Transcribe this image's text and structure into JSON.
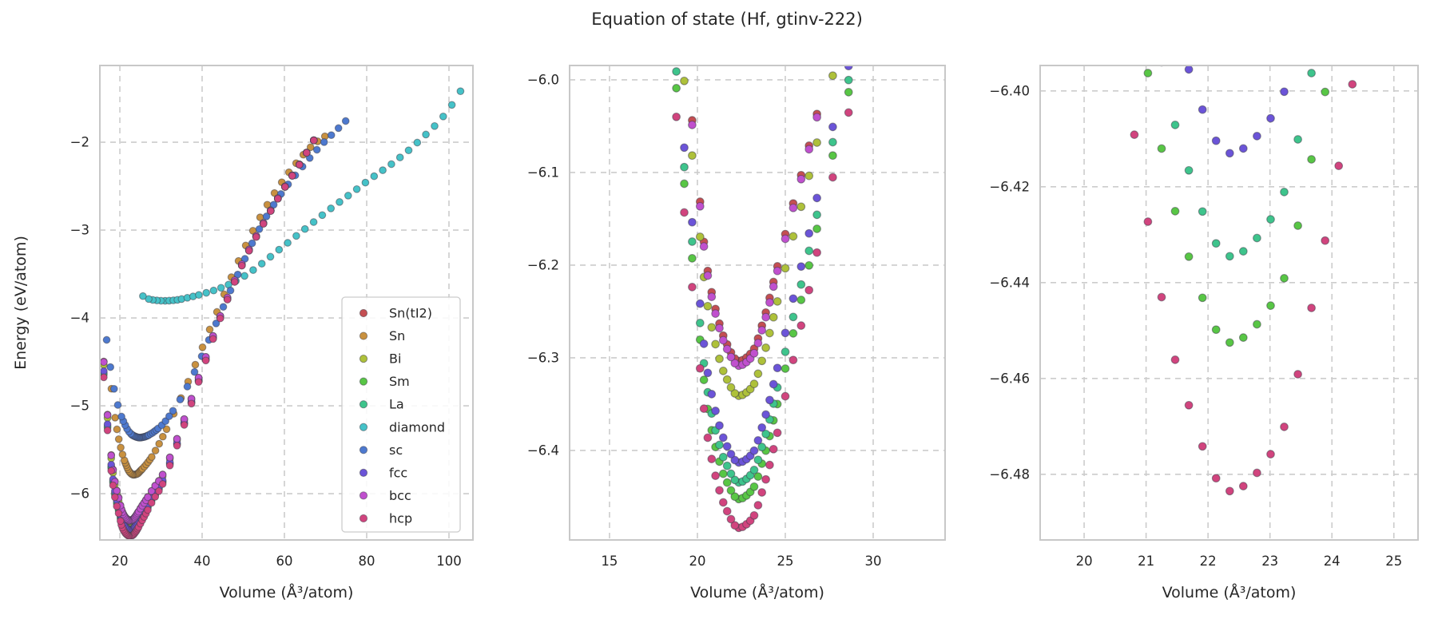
{
  "chart_data": {
    "type": "scatter",
    "title": "Equation of state (Hf, gtinv-222)",
    "xlabel": "Volume (Å³/atom)",
    "ylabel": "Energy (eV/atom)",
    "grid": "dashed-both-axes",
    "legend_position": "lower-right-of-first-subplot",
    "legend_labels": [
      "Sn(tI2)",
      "Sn",
      "Bi",
      "Sm",
      "La",
      "diamond",
      "sc",
      "fcc",
      "bcc",
      "hcp"
    ],
    "subplots": [
      {
        "name": "overview",
        "xlabel": "Volume (Å³/atom)",
        "ylabel": "Energy (eV/atom)",
        "xlim": [
          15.14,
          105.83
        ],
        "ylim": [
          -6.527,
          -1.127
        ],
        "xticks": [
          20,
          40,
          60,
          80,
          100
        ],
        "xticklabels": [
          "20",
          "40",
          "60",
          "80",
          "100"
        ],
        "yticks": [
          -2,
          -3,
          -4,
          -5,
          -6
        ],
        "yticklabels": [
          "−2",
          "−3",
          "−4",
          "−5",
          "−6"
        ],
        "legend": true
      },
      {
        "name": "zoom-mid",
        "xlabel": "Volume (Å³/atom)",
        "ylabel": "",
        "xlim": [
          12.73,
          34.09
        ],
        "ylim": [
          -6.4966,
          -5.9845
        ],
        "xticks": [
          15,
          20,
          25,
          30
        ],
        "xticklabels": [
          "15",
          "20",
          "25",
          "30"
        ],
        "yticks": [
          -6.0,
          -6.1,
          -6.2,
          -6.3,
          -6.4
        ],
        "yticklabels": [
          "−6.0",
          "−6.1",
          "−6.2",
          "−6.3",
          "−6.4"
        ],
        "legend": false
      },
      {
        "name": "zoom-fine",
        "xlabel": "Volume (Å³/atom)",
        "ylabel": "",
        "xlim": [
          19.29,
          25.39
        ],
        "ylim": [
          -6.4937,
          -6.3947
        ],
        "xticks": [
          20,
          21,
          22,
          23,
          24,
          25
        ],
        "xticklabels": [
          "20",
          "21",
          "22",
          "23",
          "24",
          "25"
        ],
        "yticks": [
          -6.4,
          -6.42,
          -6.44,
          -6.46,
          -6.48
        ],
        "yticklabels": [
          "−6.40",
          "−6.42",
          "−6.44",
          "−6.46",
          "−6.48"
        ],
        "legend": false
      }
    ],
    "series": [
      {
        "name": "Sn(tI2)",
        "color": "#c44e52",
        "V0": 22.35,
        "step_zones": [
          [
            2,
            0.22
          ],
          [
            4.2,
            0.45
          ],
          [
            8,
            0.9
          ],
          [
            999,
            1.75
          ]
        ],
        "V": [
          15.4,
          16.2,
          17,
          18,
          19,
          19.9,
          20.5,
          21,
          21.6,
          22.35,
          23.1,
          23.8,
          24.5,
          25.3,
          26.2,
          28,
          30,
          33,
          36,
          40,
          45,
          50,
          55,
          60,
          64,
          68.5
        ],
        "E": [
          -3.94,
          -4.57,
          -5.1,
          -5.6,
          -5.91,
          -6.08,
          -6.195,
          -6.245,
          -6.282,
          -6.3035,
          -6.294,
          -6.257,
          -6.205,
          -6.144,
          -6.082,
          -5.946,
          -5.817,
          -5.484,
          -5.106,
          -4.565,
          -3.903,
          -3.353,
          -2.911,
          -2.515,
          -2.226,
          -1.87
        ]
      },
      {
        "name": "Sn",
        "color": "#c9913f",
        "V0": 23.3,
        "step_zones": [
          [
            2,
            0.22
          ],
          [
            4.2,
            0.45
          ],
          [
            8,
            0.9
          ],
          [
            999,
            1.75
          ]
        ],
        "V": [
          17.5,
          18.5,
          19.5,
          20.5,
          21.5,
          22.4,
          23.3,
          24.2,
          25,
          26,
          27.5,
          29,
          31,
          33.5,
          36,
          39,
          43,
          48,
          53,
          58,
          63,
          67,
          70.9
        ],
        "E": [
          -4.62,
          -5.02,
          -5.32,
          -5.53,
          -5.67,
          -5.755,
          -5.785,
          -5.775,
          -5.74,
          -5.69,
          -5.6,
          -5.48,
          -5.3,
          -5.05,
          -4.79,
          -4.46,
          -4.0,
          -3.44,
          -2.95,
          -2.55,
          -2.23,
          -2.03,
          -1.9
        ]
      },
      {
        "name": "Bi",
        "color": "#aec13a",
        "V0": 22.35,
        "step_zones": [
          [
            2,
            0.22
          ],
          [
            4.2,
            0.45
          ],
          [
            8,
            0.9
          ],
          [
            999,
            1.75
          ]
        ],
        "V": [
          15.4,
          16.2,
          17,
          18,
          19,
          19.9,
          20.5,
          21,
          21.6,
          22.35,
          23.1,
          23.8,
          24.5,
          25.3,
          26.2,
          28,
          30,
          33,
          36,
          40,
          45,
          50,
          55,
          60,
          64,
          68.5
        ],
        "E": [
          -3.978,
          -4.608,
          -5.138,
          -5.638,
          -5.948,
          -6.118,
          -6.233,
          -6.283,
          -6.32,
          -6.341,
          -6.332,
          -6.295,
          -6.243,
          -6.18,
          -6.115,
          -5.973,
          -5.84,
          -5.502,
          -5.119,
          -4.574,
          -3.909,
          -3.357,
          -2.913,
          -2.516,
          -2.227,
          -1.87
        ]
      },
      {
        "name": "Sm",
        "color": "#58c645",
        "V0": 22.35,
        "step_zones": [
          [
            2,
            0.22
          ],
          [
            4.2,
            0.45
          ],
          [
            8,
            0.9
          ],
          [
            999,
            1.75
          ]
        ],
        "V": [
          15.4,
          16.2,
          17,
          18,
          19,
          19.9,
          20.5,
          21,
          21.6,
          22.35,
          23.1,
          23.8,
          24.5,
          25.3,
          26.2,
          28,
          30,
          33,
          36,
          40,
          45,
          50,
          55,
          60,
          64,
          68.5
        ],
        "E": [
          -4.089,
          -4.719,
          -5.249,
          -5.749,
          -6.059,
          -6.229,
          -6.344,
          -6.394,
          -6.431,
          -6.4525,
          -6.443,
          -6.406,
          -6.354,
          -6.286,
          -6.213,
          -6.057,
          -5.91,
          -5.555,
          -5.159,
          -4.602,
          -3.925,
          -3.367,
          -2.918,
          -2.519,
          -2.229,
          -1.87
        ]
      },
      {
        "name": "La",
        "color": "#3ec48c",
        "V0": 22.35,
        "step_zones": [
          [
            2,
            0.22
          ],
          [
            4.2,
            0.45
          ],
          [
            8,
            0.9
          ],
          [
            999,
            1.75
          ]
        ],
        "V": [
          15.4,
          16.2,
          17,
          18,
          19,
          19.9,
          20.5,
          21,
          21.6,
          22.35,
          23.1,
          23.8,
          24.5,
          25.3,
          26.2,
          28,
          30,
          33,
          36,
          40,
          45,
          50,
          55,
          60,
          64,
          68.5
        ],
        "E": [
          -4.071,
          -4.701,
          -5.231,
          -5.731,
          -6.041,
          -6.211,
          -6.326,
          -6.376,
          -6.413,
          -6.4345,
          -6.425,
          -6.388,
          -6.336,
          -6.268,
          -6.197,
          -6.043,
          -5.899,
          -5.546,
          -5.152,
          -4.598,
          -3.923,
          -3.366,
          -2.918,
          -2.519,
          -2.229,
          -1.87
        ]
      },
      {
        "name": "diamond",
        "color": "#45c2c8",
        "V0": 31,
        "step_zones": [
          [
            4,
            1.0
          ],
          [
            8,
            1.4
          ],
          [
            16,
            1.8
          ],
          [
            999,
            2.1
          ]
        ],
        "V": [
          24.4,
          26,
          28,
          30.5,
          33,
          36,
          39,
          42,
          46,
          50,
          54,
          58,
          62,
          66,
          70,
          74,
          78,
          82,
          86,
          90,
          94,
          98,
          101.5,
          104.6
        ],
        "E": [
          -3.69,
          -3.765,
          -3.795,
          -3.805,
          -3.8,
          -3.775,
          -3.74,
          -3.7,
          -3.63,
          -3.53,
          -3.4,
          -3.25,
          -3.1,
          -2.95,
          -2.8,
          -2.66,
          -2.52,
          -2.38,
          -2.25,
          -2.1,
          -1.93,
          -1.74,
          -1.52,
          -1.27
        ]
      },
      {
        "name": "sc",
        "color": "#4d79cf",
        "V0": 24.85,
        "step_zones": [
          [
            2,
            0.22
          ],
          [
            4.2,
            0.45
          ],
          [
            8,
            0.9
          ],
          [
            999,
            1.75
          ]
        ],
        "V": [
          16.8,
          17.7,
          18.7,
          19.8,
          21,
          22.3,
          23.5,
          24.85,
          26.2,
          27.5,
          29,
          31,
          33,
          35.5,
          38,
          41,
          45,
          49,
          54,
          59,
          64,
          69,
          72.5,
          75.3
        ],
        "E": [
          -4.25,
          -4.56,
          -4.83,
          -5.04,
          -5.19,
          -5.3,
          -5.345,
          -5.362,
          -5.35,
          -5.32,
          -5.27,
          -5.18,
          -5.05,
          -4.86,
          -4.63,
          -4.32,
          -3.89,
          -3.47,
          -2.98,
          -2.6,
          -2.3,
          -2.03,
          -1.87,
          -1.74
        ]
      },
      {
        "name": "fcc",
        "color": "#6b54d8",
        "V0": 22.35,
        "step_zones": [
          [
            2,
            0.22
          ],
          [
            4.2,
            0.45
          ],
          [
            8,
            0.9
          ],
          [
            999,
            1.75
          ]
        ],
        "V": [
          15.4,
          16.2,
          17,
          18,
          19,
          19.9,
          20.5,
          21,
          21.6,
          22.35,
          23.1,
          23.8,
          24.5,
          25.3,
          26.2,
          28,
          30,
          33,
          36,
          40,
          45,
          50,
          55,
          60,
          64,
          68.5
        ],
        "E": [
          -4.05,
          -4.68,
          -5.21,
          -5.71,
          -6.02,
          -6.19,
          -6.305,
          -6.355,
          -6.392,
          -6.413,
          -6.404,
          -6.367,
          -6.315,
          -6.248,
          -6.178,
          -6.027,
          -5.886,
          -5.536,
          -5.145,
          -4.592,
          -3.919,
          -3.364,
          -2.916,
          -2.518,
          -2.229,
          -1.87
        ]
      },
      {
        "name": "bcc",
        "color": "#c050ce",
        "V0": 22.35,
        "step_zones": [
          [
            2,
            0.22
          ],
          [
            4.2,
            0.45
          ],
          [
            8,
            0.9
          ],
          [
            999,
            1.75
          ]
        ],
        "V": [
          15.4,
          16.2,
          17,
          18,
          19,
          19.9,
          20.5,
          21,
          21.6,
          22.35,
          23.1,
          23.8,
          24.5,
          25.3,
          26.2,
          28,
          30,
          33,
          36,
          40,
          45,
          50,
          55,
          60,
          64,
          68.5
        ],
        "E": [
          -3.945,
          -4.575,
          -5.105,
          -5.605,
          -5.915,
          -6.085,
          -6.2,
          -6.25,
          -6.287,
          -6.3085,
          -6.299,
          -6.262,
          -6.21,
          -6.149,
          -6.086,
          -5.949,
          -5.82,
          -5.486,
          -5.107,
          -4.566,
          -3.904,
          -3.354,
          -2.911,
          -2.515,
          -2.227,
          -1.87
        ]
      },
      {
        "name": "hcp",
        "color": "#d1447e",
        "V0": 22.35,
        "step_zones": [
          [
            2,
            0.22
          ],
          [
            4.2,
            0.45
          ],
          [
            8,
            0.9
          ],
          [
            999,
            1.75
          ]
        ],
        "V": [
          15.4,
          16.2,
          17,
          18,
          19,
          19.9,
          20.5,
          21,
          21.6,
          22.35,
          23.1,
          23.8,
          24.5,
          25.3,
          26.2,
          28,
          30,
          33,
          36,
          40,
          45,
          50,
          55,
          60,
          64,
          68.5
        ],
        "E": [
          -4.12,
          -4.75,
          -5.28,
          -5.78,
          -6.09,
          -6.26,
          -6.375,
          -6.425,
          -6.462,
          -6.4835,
          -6.474,
          -6.437,
          -6.385,
          -6.315,
          -6.24,
          -6.08,
          -5.93,
          -5.57,
          -5.17,
          -4.61,
          -3.93,
          -3.37,
          -2.92,
          -2.52,
          -2.23,
          -1.87
        ]
      }
    ],
    "style": {
      "grid_color": "#cccccc",
      "spine_color": "#c8c8c8",
      "text_color": "#262626",
      "marker_edge": "#3c3c46",
      "background": "#ffffff"
    }
  }
}
